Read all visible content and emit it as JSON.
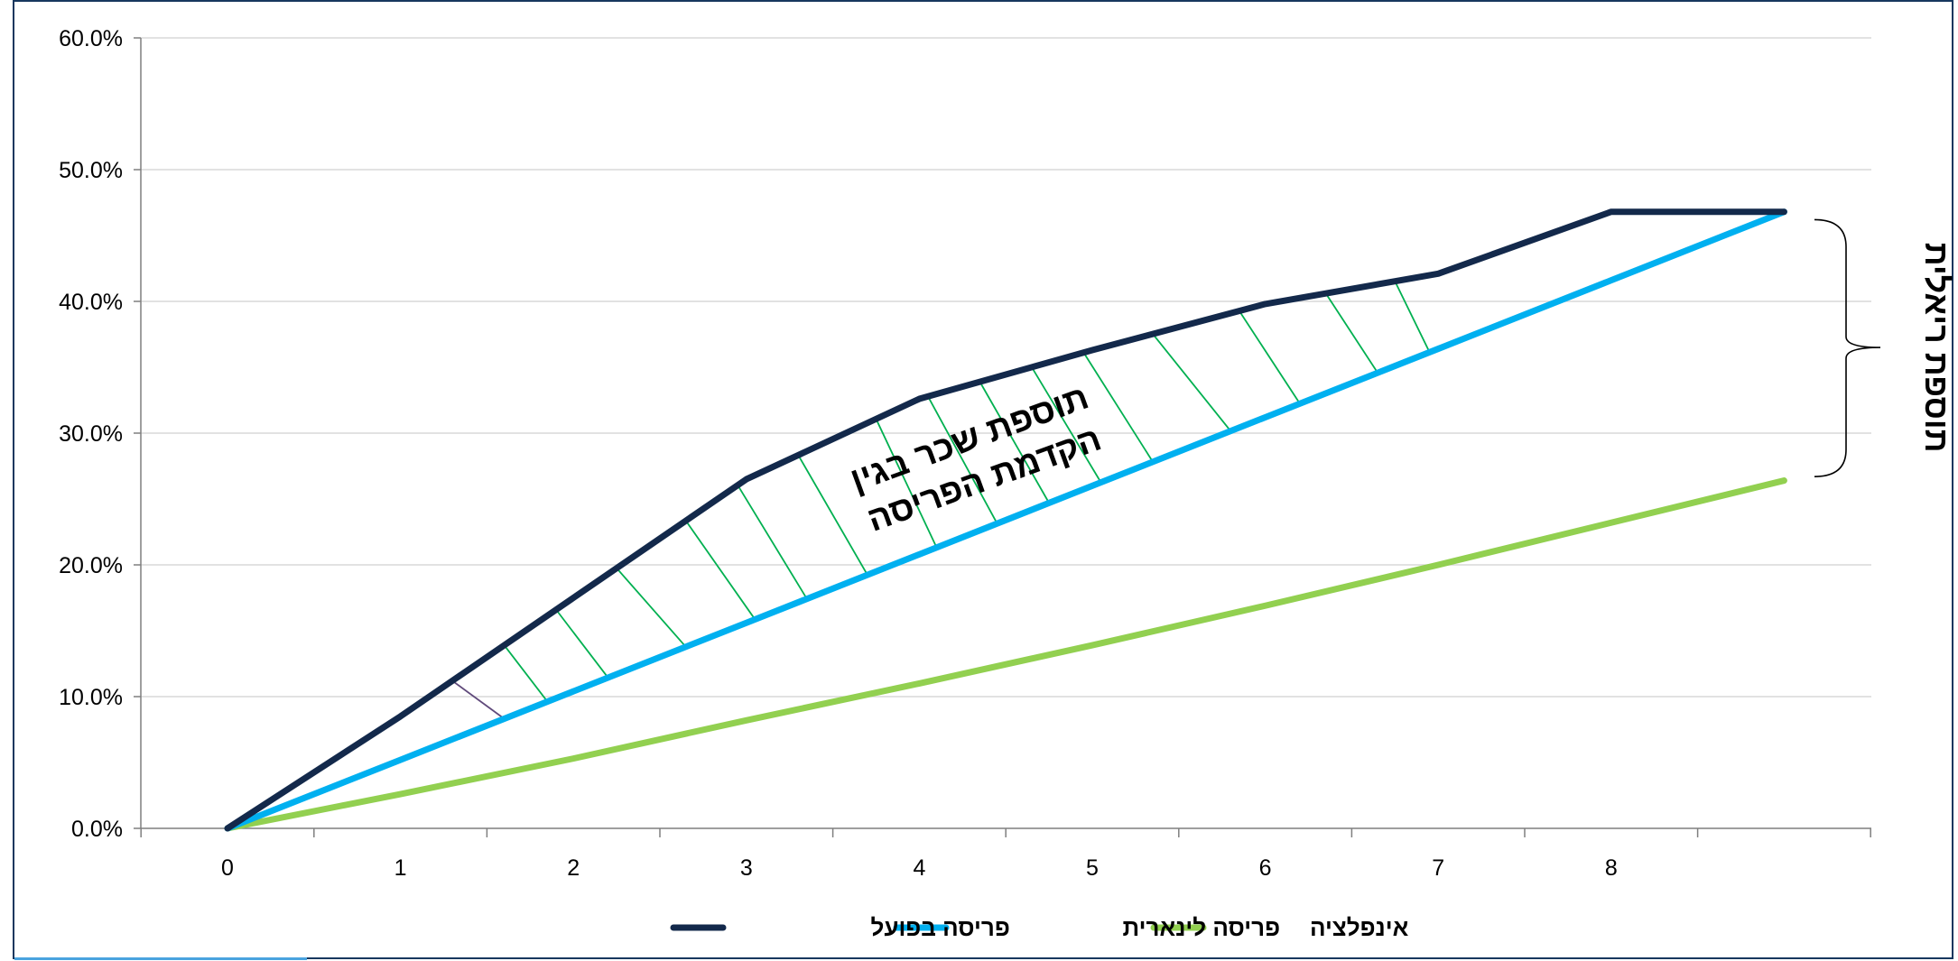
{
  "chart_data": {
    "type": "line",
    "x": [
      0,
      1,
      2,
      3,
      4,
      5,
      6,
      7,
      8,
      9
    ],
    "xtick_labels": [
      "0",
      "1",
      "2",
      "3",
      "4",
      "5",
      "6",
      "7",
      "8"
    ],
    "ytick_labels": [
      "0.0%",
      "10.0%",
      "20.0%",
      "30.0%",
      "40.0%",
      "50.0%",
      "60.0%"
    ],
    "ylim": [
      0,
      60
    ],
    "xlim": [
      -0.5,
      9.5
    ],
    "grid": true,
    "legend_position": "bottom",
    "series": [
      {
        "name": "פריסה בפועל",
        "color": "#13294b",
        "values": [
          0,
          8.5,
          17.5,
          26.5,
          32.6,
          36.3,
          39.8,
          42.1,
          46.8,
          46.8
        ]
      },
      {
        "name": "פריסה לינארית",
        "color": "#00b0f0",
        "values": [
          0,
          5.2,
          10.4,
          15.6,
          20.8,
          26.0,
          31.2,
          36.4,
          41.6,
          46.8
        ]
      },
      {
        "name": "אינפלציה",
        "color": "#92d050",
        "values": [
          0,
          2.6,
          5.3,
          8.2,
          11.0,
          13.9,
          16.9,
          20.0,
          23.2,
          26.4
        ]
      }
    ],
    "legend_entries": [
      "אינפלציה",
      "פריסה לינארית",
      "פריסה בפועל"
    ],
    "annotations": {
      "region_label_line1": "תוספת שכר בגין",
      "region_label_line2": "הקדמת הפריסה",
      "bracket_label": "תוספת ריאלית"
    },
    "hatch_color": "#00b050",
    "bracket_color": "#000000"
  }
}
